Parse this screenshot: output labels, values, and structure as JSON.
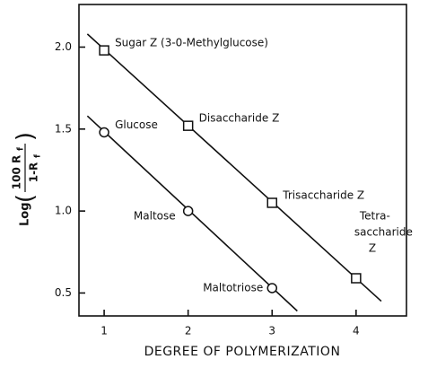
{
  "chart_data": {
    "type": "scatter",
    "xlabel": "DEGREE OF POLYMERIZATION",
    "ylabel": {
      "prefix": "Log",
      "numerator": "100 R",
      "numerator_sub": "f",
      "denominator": "1-R",
      "denominator_sub": "f"
    },
    "xlim": [
      0.7,
      4.6
    ],
    "ylim": [
      0.36,
      2.26
    ],
    "xticks": [
      1,
      2,
      3,
      4
    ],
    "yticks": [
      {
        "value": 0.5,
        "label": "0.5"
      },
      {
        "value": 1.0,
        "label": "1.0"
      },
      {
        "value": 1.5,
        "label": "1.5"
      },
      {
        "value": 2.0,
        "label": "2.0"
      }
    ],
    "series": [
      {
        "marker": "square",
        "color": "#111111",
        "x": [
          1,
          2,
          3,
          4
        ],
        "values": [
          1.98,
          1.52,
          1.05,
          0.59
        ],
        "point_labels": [
          [
            "Sugar Z (3-0-Methylglucose)"
          ],
          [
            "Disaccharide Z"
          ],
          [
            "Trisaccharide Z"
          ],
          [
            "Tetra-",
            "saccharide",
            "Z"
          ]
        ],
        "fit": {
          "x": [
            0.8,
            4.3
          ],
          "values": [
            2.08,
            0.45
          ]
        }
      },
      {
        "marker": "circle",
        "color": "#111111",
        "x": [
          1,
          2,
          3
        ],
        "values": [
          1.48,
          1.0,
          0.53
        ],
        "point_labels": [
          [
            "Glucose"
          ],
          [
            "Maltose"
          ],
          [
            "Maltotriose"
          ]
        ],
        "fit": {
          "x": [
            0.8,
            3.3
          ],
          "values": [
            1.58,
            0.39
          ]
        }
      }
    ]
  }
}
